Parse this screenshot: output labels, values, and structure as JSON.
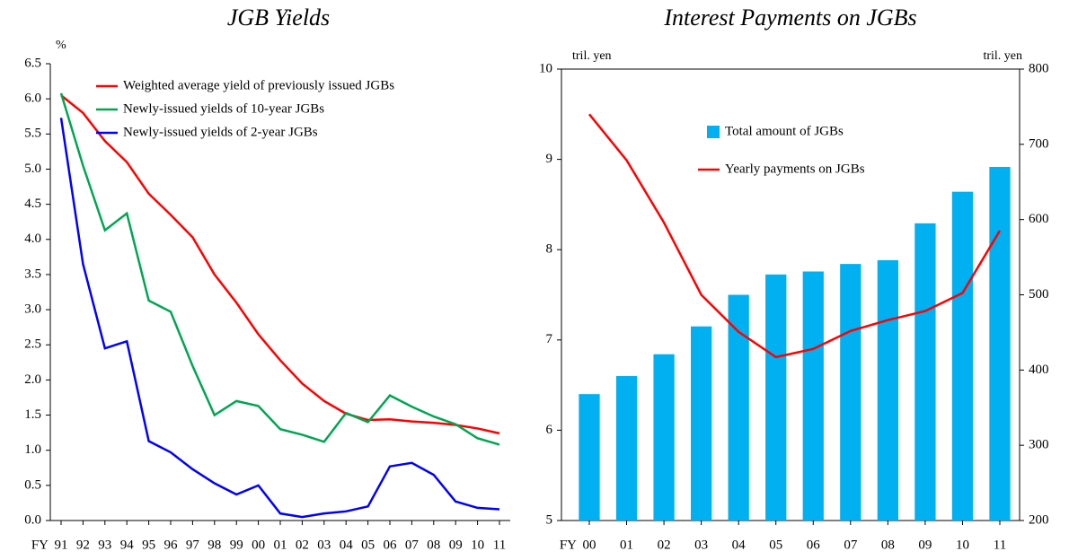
{
  "chart_data": [
    {
      "type": "line",
      "title": "JGB Yields",
      "y_label": "%",
      "x_prefix": "FY",
      "categories": [
        "91",
        "92",
        "93",
        "94",
        "95",
        "96",
        "97",
        "98",
        "99",
        "00",
        "01",
        "02",
        "03",
        "04",
        "05",
        "06",
        "07",
        "08",
        "09",
        "10",
        "11"
      ],
      "series": [
        {
          "name": "Weighted average yield of previously issued JGBs",
          "color": "#ff0000",
          "values": [
            6.05,
            5.8,
            5.4,
            5.1,
            4.65,
            4.35,
            4.03,
            3.5,
            3.1,
            2.65,
            2.28,
            1.95,
            1.7,
            1.52,
            1.43,
            1.44,
            1.41,
            1.39,
            1.36,
            1.31,
            1.24
          ]
        },
        {
          "name": "Newly-issued yields of 10-year JGBs",
          "color": "#00a651",
          "values": [
            6.08,
            5.05,
            4.13,
            4.37,
            3.13,
            2.97,
            2.2,
            1.5,
            1.7,
            1.63,
            1.3,
            1.22,
            1.12,
            1.53,
            1.4,
            1.78,
            1.62,
            1.48,
            1.37,
            1.17,
            1.08
          ]
        },
        {
          "name": "Newly-issued yields of 2-year JGBs",
          "color": "#0000ff",
          "values": [
            5.73,
            3.65,
            2.45,
            2.55,
            1.13,
            0.97,
            0.73,
            0.53,
            0.37,
            0.5,
            0.1,
            0.05,
            0.1,
            0.13,
            0.2,
            0.77,
            0.82,
            0.65,
            0.27,
            0.18,
            0.16
          ]
        }
      ],
      "ylim": [
        0,
        6.5
      ],
      "yticks": [
        {
          "value": 0,
          "label": "0.0"
        },
        0.5,
        {
          "value": 1,
          "label": "1.0"
        },
        1.5,
        {
          "value": 2,
          "label": "2.0"
        },
        2.5,
        {
          "value": 3,
          "label": "3.0"
        },
        3.5,
        {
          "value": 4,
          "label": "4.0"
        },
        4.5,
        {
          "value": 5,
          "label": "5.0"
        },
        5.5,
        {
          "value": 6,
          "label": "6.0"
        },
        6.5
      ]
    },
    {
      "type": "combo",
      "title": "Interest Payments on JGBs",
      "y_label": "tril. yen",
      "y2_label": "tril. yen",
      "x_prefix": "FY",
      "categories": [
        "00",
        "01",
        "02",
        "03",
        "04",
        "05",
        "06",
        "07",
        "08",
        "09",
        "10",
        "11"
      ],
      "series": [
        {
          "name": "Total amount of JGBs",
          "type": "bar",
          "axis": "y2",
          "color": "#00b0f0",
          "values": [
            368,
            392,
            421,
            458,
            500,
            527,
            531,
            541,
            546,
            595,
            637,
            670
          ]
        },
        {
          "name": "Yearly payments on JGBs",
          "type": "line",
          "color": "#ff0000",
          "values": [
            9.5,
            8.99,
            8.3,
            7.5,
            7.09,
            6.81,
            6.9,
            7.1,
            7.22,
            7.32,
            7.52,
            8.21
          ]
        }
      ],
      "ylim": [
        5,
        10
      ],
      "yticks": [
        5,
        6,
        7,
        8,
        9,
        10
      ],
      "y2lim": [
        200,
        800
      ],
      "y2ticks": [
        200,
        300,
        400,
        500,
        600,
        700,
        800
      ]
    }
  ]
}
